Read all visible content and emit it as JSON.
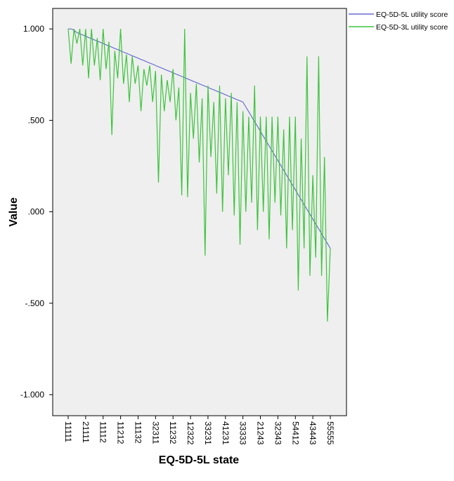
{
  "chart_data": {
    "type": "line",
    "x_label": "EQ-5D-5L state",
    "y_label": "Value",
    "categories": [
      "11111",
      null,
      null,
      null,
      null,
      null,
      "21111",
      null,
      null,
      null,
      null,
      null,
      "11112",
      null,
      null,
      null,
      null,
      null,
      "11212",
      null,
      null,
      null,
      null,
      null,
      "11132",
      null,
      null,
      null,
      null,
      null,
      "32311",
      null,
      null,
      null,
      null,
      null,
      "11232",
      null,
      null,
      null,
      null,
      null,
      "12322",
      null,
      null,
      null,
      null,
      null,
      "33231",
      null,
      null,
      null,
      null,
      null,
      "41231",
      null,
      null,
      null,
      null,
      null,
      "33333",
      null,
      null,
      null,
      null,
      null,
      "21243",
      null,
      null,
      null,
      null,
      null,
      "32343",
      null,
      null,
      null,
      null,
      null,
      "54412",
      null,
      null,
      null,
      null,
      null,
      "43443",
      null,
      null,
      null,
      null,
      null,
      "55555"
    ],
    "series": [
      {
        "name": "EQ-5D-5L utility score",
        "color": "#6a6fd0",
        "values": [
          1.0,
          1.0,
          0.993,
          0.98,
          0.973,
          0.967,
          0.96,
          0.953,
          0.947,
          0.94,
          0.933,
          0.927,
          0.92,
          0.913,
          0.907,
          0.9,
          0.893,
          0.887,
          0.88,
          0.873,
          0.867,
          0.86,
          0.853,
          0.847,
          0.84,
          0.833,
          0.827,
          0.82,
          0.813,
          0.807,
          0.8,
          0.793,
          0.787,
          0.78,
          0.773,
          0.767,
          0.76,
          0.753,
          0.747,
          0.74,
          0.733,
          0.727,
          0.72,
          0.713,
          0.707,
          0.7,
          0.693,
          0.687,
          0.68,
          0.673,
          0.667,
          0.66,
          0.653,
          0.647,
          0.64,
          0.633,
          0.627,
          0.62,
          0.613,
          0.607,
          0.6,
          0.573,
          0.547,
          0.52,
          0.493,
          0.467,
          0.44,
          0.413,
          0.387,
          0.36,
          0.333,
          0.307,
          0.28,
          0.253,
          0.227,
          0.2,
          0.173,
          0.147,
          0.12,
          0.093,
          0.067,
          0.04,
          0.013,
          -0.013,
          -0.04,
          -0.067,
          -0.093,
          -0.12,
          -0.147,
          -0.173,
          -0.2
        ]
      },
      {
        "name": "EQ-5D-3L utility score",
        "color": "#3cc43c",
        "values": [
          1.0,
          0.81,
          1.0,
          0.92,
          1.0,
          0.8,
          1.0,
          0.73,
          1.0,
          0.8,
          0.95,
          0.72,
          1.0,
          0.78,
          0.93,
          0.42,
          0.88,
          0.73,
          1.0,
          0.7,
          0.86,
          0.6,
          0.85,
          0.7,
          0.8,
          0.55,
          0.78,
          0.69,
          0.8,
          0.6,
          0.77,
          0.16,
          0.75,
          0.55,
          0.72,
          0.6,
          0.78,
          0.5,
          0.68,
          0.09,
          1.0,
          0.08,
          0.65,
          0.4,
          0.7,
          0.27,
          0.62,
          -0.24,
          0.69,
          0.3,
          0.6,
          0.1,
          0.69,
          0.0,
          0.62,
          0.2,
          0.65,
          -0.02,
          0.6,
          -0.18,
          0.55,
          0.0,
          0.52,
          0.05,
          0.69,
          -0.1,
          0.52,
          0.0,
          0.52,
          -0.15,
          0.52,
          0.05,
          0.52,
          -0.02,
          0.45,
          -0.2,
          0.52,
          -0.1,
          0.52,
          -0.43,
          0.4,
          -0.2,
          0.85,
          -0.35,
          0.2,
          -0.25,
          0.85,
          -0.35,
          0.3,
          -0.6,
          -0.2
        ]
      }
    ],
    "ylim": [
      -1.115,
      1.112
    ],
    "yticks": [
      {
        "value": 1,
        "label": "1.000"
      },
      {
        "value": 0.5,
        "label": ".500"
      },
      {
        "value": 0,
        "label": ".000"
      },
      {
        "value": -0.5,
        "label": "-.500"
      },
      {
        "value": -1,
        "label": "-1.000"
      }
    ],
    "legend": "top-right"
  }
}
